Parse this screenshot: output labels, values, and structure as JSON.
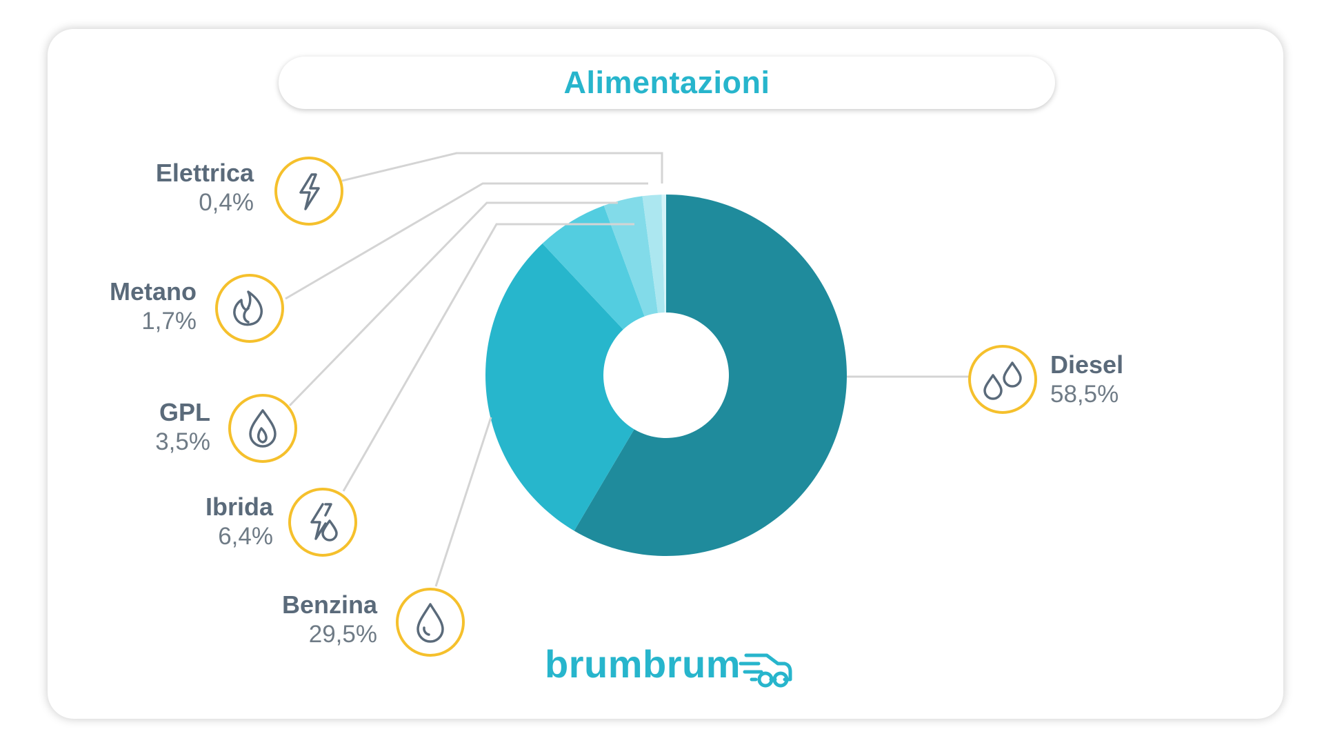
{
  "title": "Alimentazioni",
  "brand": "brumbrum",
  "colors": {
    "accent": "#27b5cc",
    "icon_ring": "#f5c02c",
    "connector": "#d4d4d4",
    "text_dark": "#5a6a7a",
    "text_light": "#6f7b86"
  },
  "chart_data": {
    "type": "pie",
    "donut": true,
    "title": "Alimentazioni",
    "slices": [
      {
        "label": "Diesel",
        "value": 58.5,
        "value_label": "58,5%",
        "color": "#1f8b9c",
        "icon": "double-drop-icon",
        "side": "right"
      },
      {
        "label": "Benzina",
        "value": 29.5,
        "value_label": "29,5%",
        "color": "#27b6cc",
        "icon": "drop-icon",
        "side": "left"
      },
      {
        "label": "Ibrida",
        "value": 6.4,
        "value_label": "6,4%",
        "color": "#53cde0",
        "icon": "bolt-drop-icon",
        "side": "left"
      },
      {
        "label": "GPL",
        "value": 3.5,
        "value_label": "3,5%",
        "color": "#82dbe9",
        "icon": "flame-drop-icon",
        "side": "left"
      },
      {
        "label": "Metano",
        "value": 1.7,
        "value_label": "1,7%",
        "color": "#ace7f0",
        "icon": "fire-icon",
        "side": "left"
      },
      {
        "label": "Elettrica",
        "value": 0.4,
        "value_label": "0,4%",
        "color": "#d3f3f8",
        "icon": "bolt-icon",
        "side": "left"
      }
    ]
  }
}
